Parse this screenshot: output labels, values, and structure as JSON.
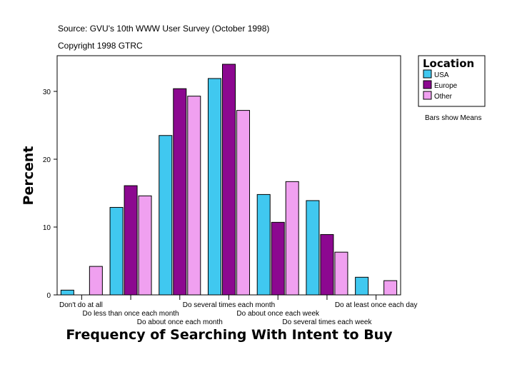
{
  "chart_data": {
    "type": "bar",
    "source": "Source: GVU's 10th WWW User Survey (October 1998)",
    "copyright": "Copyright 1998 GTRC",
    "xlabel": "Frequency of Searching With Intent to Buy",
    "ylabel": "Percent",
    "ylim": [
      0,
      35
    ],
    "yticks": [
      0,
      10,
      20,
      30
    ],
    "categories": [
      "Don't do at all",
      "Do less than once each month",
      "Do about once each month",
      "Do several times each month",
      "Do about once each week",
      "Do several times each week",
      "Do at least once each day"
    ],
    "series": [
      {
        "name": "USA",
        "color": "#40C8F0",
        "values": [
          0.7,
          12.9,
          23.5,
          31.9,
          14.8,
          13.9,
          2.6
        ]
      },
      {
        "name": "Europe",
        "color": "#8C0890",
        "values": [
          0,
          16.1,
          30.4,
          34.0,
          10.7,
          8.9,
          0
        ]
      },
      {
        "name": "Other",
        "color": "#F0A0F0",
        "values": [
          4.2,
          14.6,
          29.3,
          27.2,
          16.7,
          6.3,
          2.1
        ]
      }
    ],
    "legend": {
      "title": "Location",
      "placement": "right"
    },
    "note": "Bars show Means",
    "grid": false
  }
}
